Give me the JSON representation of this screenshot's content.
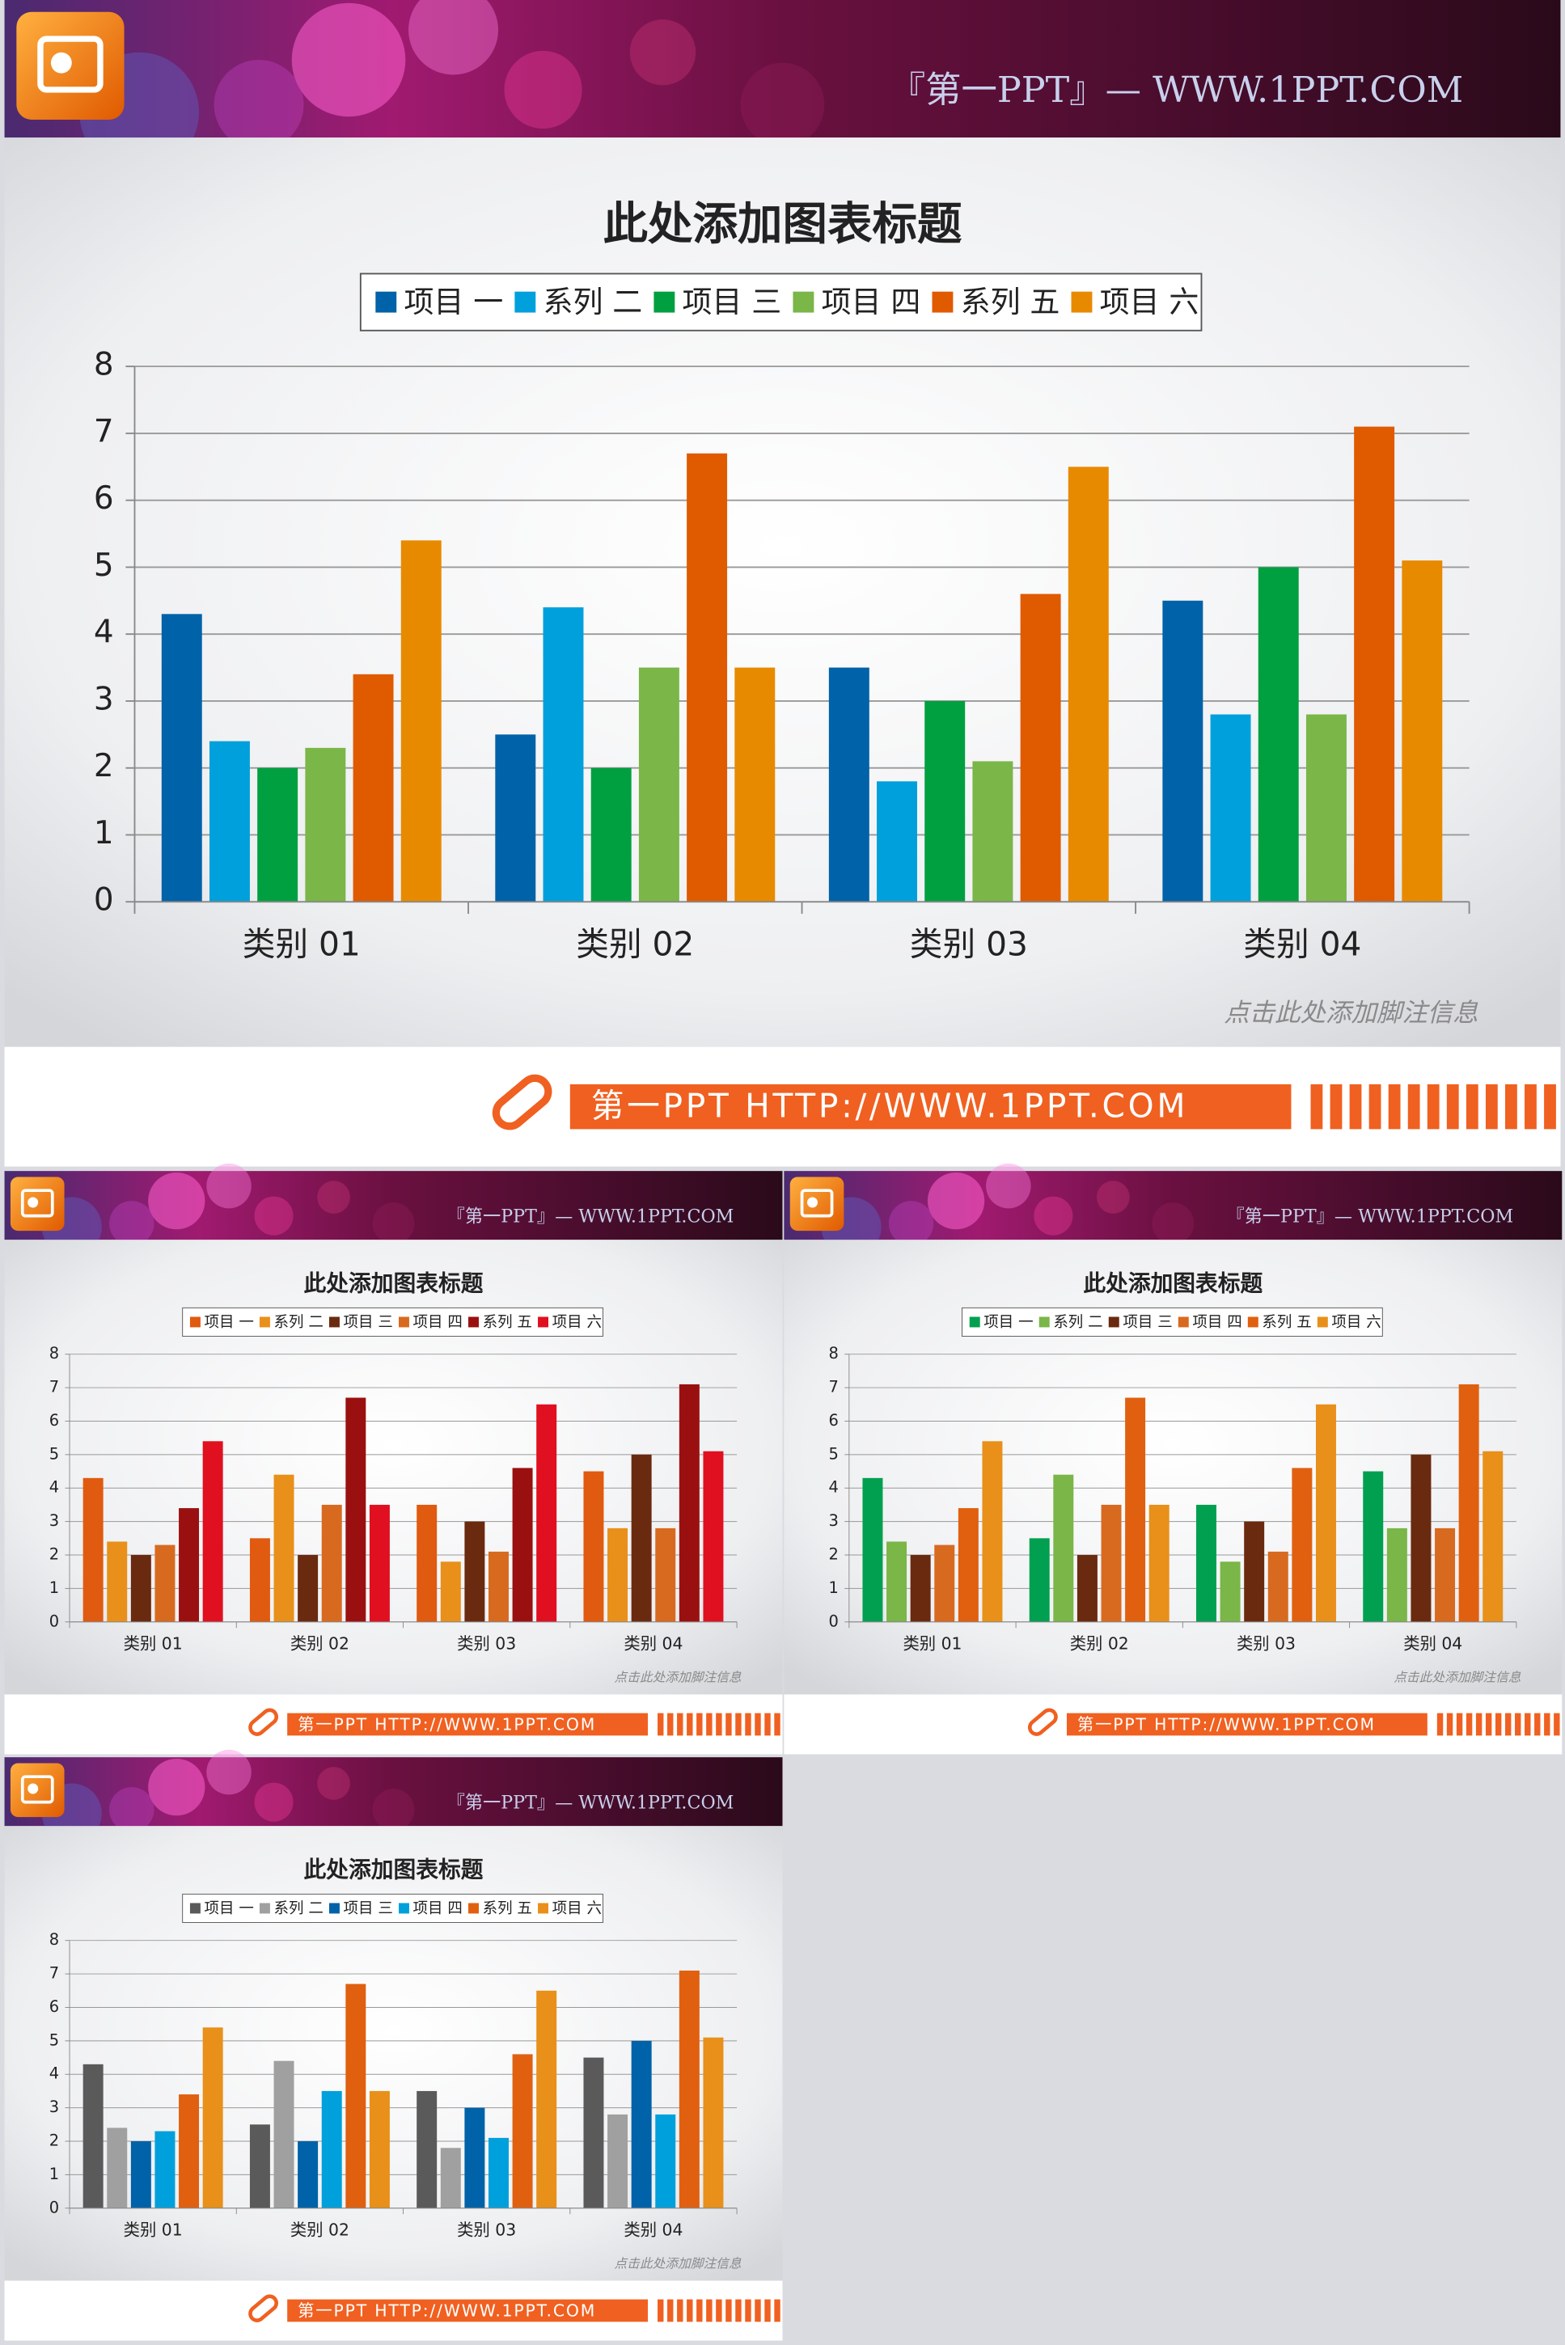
{
  "slides": [
    {
      "header": "『第一PPT』— WWW.1PPT.COM",
      "footnote": "点击此处添加脚注信息",
      "banner": "第一PPT HTTP://WWW.1PPT.COM"
    },
    {
      "header": "『第一PPT』— WWW.1PPT.COM",
      "footnote": "点击此处添加脚注信息",
      "banner": "第一PPT HTTP://WWW.1PPT.COM"
    },
    {
      "header": "『第一PPT』— WWW.1PPT.COM",
      "footnote": "点击此处添加脚注信息",
      "banner": "第一PPT HTTP://WWW.1PPT.COM"
    },
    {
      "header": "『第一PPT』— WWW.1PPT.COM",
      "footnote": "点击此处添加脚注信息",
      "banner": "第一PPT HTTP://WWW.1PPT.COM"
    }
  ],
  "chart_data": [
    {
      "type": "bar",
      "title": "此处添加图表标题",
      "categories": [
        "类别 01",
        "类别 02",
        "类别 03",
        "类别 04"
      ],
      "series": [
        {
          "name": "项目 一",
          "color": "#0062a8",
          "values": [
            4.3,
            2.5,
            3.5,
            4.5
          ]
        },
        {
          "name": "系列 二",
          "color": "#00a0dc",
          "values": [
            2.4,
            4.4,
            1.8,
            2.8
          ]
        },
        {
          "name": "项目 三",
          "color": "#00a040",
          "values": [
            2.0,
            2.0,
            3.0,
            5.0
          ]
        },
        {
          "name": "项目 四",
          "color": "#7ab648",
          "values": [
            2.3,
            3.5,
            2.1,
            2.8
          ]
        },
        {
          "name": "系列 五",
          "color": "#e05a00",
          "values": [
            3.4,
            6.7,
            4.6,
            7.1
          ]
        },
        {
          "name": "项目 六",
          "color": "#e88a00",
          "values": [
            5.4,
            3.5,
            6.5,
            5.1
          ]
        }
      ],
      "ylim": [
        0,
        8
      ],
      "yticks": [
        0,
        1,
        2,
        3,
        4,
        5,
        6,
        7,
        8
      ],
      "grid": true
    },
    {
      "type": "bar",
      "title": "此处添加图表标题",
      "categories": [
        "类别 01",
        "类别 02",
        "类别 03",
        "类别 04"
      ],
      "series": [
        {
          "name": "项目 一",
          "color": "#e05a10",
          "values": [
            4.3,
            2.5,
            3.5,
            4.5
          ]
        },
        {
          "name": "系列 二",
          "color": "#e8901a",
          "values": [
            2.4,
            4.4,
            1.8,
            2.8
          ]
        },
        {
          "name": "项目 三",
          "color": "#6a2a10",
          "values": [
            2.0,
            2.0,
            3.0,
            5.0
          ]
        },
        {
          "name": "项目 四",
          "color": "#d86a20",
          "values": [
            2.3,
            3.5,
            2.1,
            2.8
          ]
        },
        {
          "name": "系列 五",
          "color": "#9a1010",
          "values": [
            3.4,
            6.7,
            4.6,
            7.1
          ]
        },
        {
          "name": "项目 六",
          "color": "#e01020",
          "values": [
            5.4,
            3.5,
            6.5,
            5.1
          ]
        }
      ],
      "ylim": [
        0,
        8
      ],
      "yticks": [
        0,
        1,
        2,
        3,
        4,
        5,
        6,
        7,
        8
      ],
      "grid": true
    },
    {
      "type": "bar",
      "title": "此处添加图表标题",
      "categories": [
        "类别 01",
        "类别 02",
        "类别 03",
        "类别 04"
      ],
      "series": [
        {
          "name": "项目 一",
          "color": "#00a050",
          "values": [
            4.3,
            2.5,
            3.5,
            4.5
          ]
        },
        {
          "name": "系列 二",
          "color": "#7ab648",
          "values": [
            2.4,
            4.4,
            1.8,
            2.8
          ]
        },
        {
          "name": "项目 三",
          "color": "#6a2a10",
          "values": [
            2.0,
            2.0,
            3.0,
            5.0
          ]
        },
        {
          "name": "项目 四",
          "color": "#d86a20",
          "values": [
            2.3,
            3.5,
            2.1,
            2.8
          ]
        },
        {
          "name": "系列 五",
          "color": "#e06010",
          "values": [
            3.4,
            6.7,
            4.6,
            7.1
          ]
        },
        {
          "name": "项目 六",
          "color": "#e8901a",
          "values": [
            5.4,
            3.5,
            6.5,
            5.1
          ]
        }
      ],
      "ylim": [
        0,
        8
      ],
      "yticks": [
        0,
        1,
        2,
        3,
        4,
        5,
        6,
        7,
        8
      ],
      "grid": true
    },
    {
      "type": "bar",
      "title": "此处添加图表标题",
      "categories": [
        "类别 01",
        "类别 02",
        "类别 03",
        "类别 04"
      ],
      "series": [
        {
          "name": "项目 一",
          "color": "#5a5a5a",
          "values": [
            4.3,
            2.5,
            3.5,
            4.5
          ]
        },
        {
          "name": "系列 二",
          "color": "#a0a0a0",
          "values": [
            2.4,
            4.4,
            1.8,
            2.8
          ]
        },
        {
          "name": "项目 三",
          "color": "#0062a8",
          "values": [
            2.0,
            2.0,
            3.0,
            5.0
          ]
        },
        {
          "name": "项目 四",
          "color": "#00a0dc",
          "values": [
            2.3,
            3.5,
            2.1,
            2.8
          ]
        },
        {
          "name": "系列 五",
          "color": "#e06010",
          "values": [
            3.4,
            6.7,
            4.6,
            7.1
          ]
        },
        {
          "name": "项目 六",
          "color": "#e8901a",
          "values": [
            5.4,
            3.5,
            6.5,
            5.1
          ]
        }
      ],
      "ylim": [
        0,
        8
      ],
      "yticks": [
        0,
        1,
        2,
        3,
        4,
        5,
        6,
        7,
        8
      ],
      "grid": true
    }
  ]
}
